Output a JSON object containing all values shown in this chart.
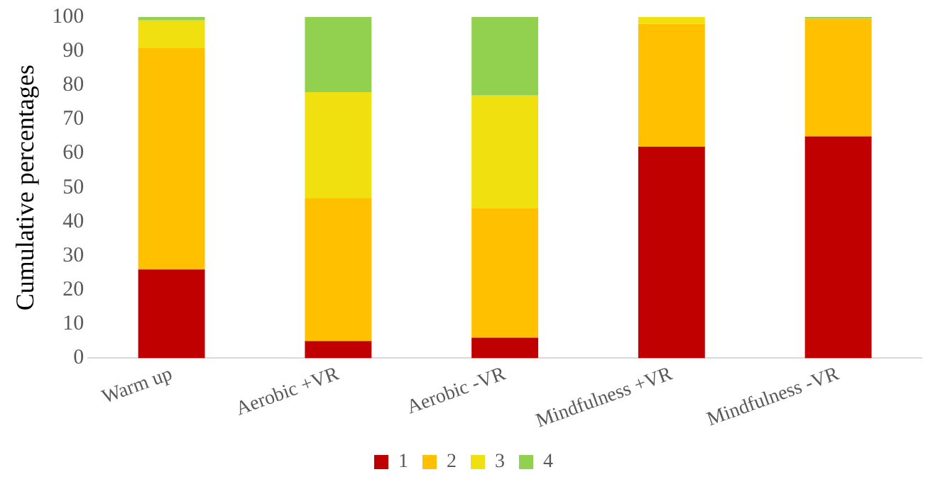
{
  "chart_data": {
    "type": "bar",
    "stacked": true,
    "ylabel": "Cumulative percentages",
    "categories": [
      "Warm up",
      "Aerobic +VR",
      "Aerobic -VR",
      "Mindfulness +VR",
      "Mindfulness -VR"
    ],
    "series": [
      {
        "name": "1",
        "color": "#c00000",
        "values": [
          26,
          5,
          6,
          62,
          65
        ]
      },
      {
        "name": "2",
        "color": "#ffc000",
        "values": [
          65,
          42,
          38,
          36,
          34.5
        ]
      },
      {
        "name": "3",
        "color": "#f0e010",
        "values": [
          8,
          31,
          33,
          2,
          0
        ]
      },
      {
        "name": "4",
        "color": "#92d050",
        "values": [
          1,
          22,
          23,
          0,
          0.5
        ]
      }
    ],
    "ylim": [
      0,
      100
    ],
    "yticks": [
      0,
      10,
      20,
      30,
      40,
      50,
      60,
      70,
      80,
      90,
      100
    ],
    "grid": false,
    "legend": "bottom"
  }
}
